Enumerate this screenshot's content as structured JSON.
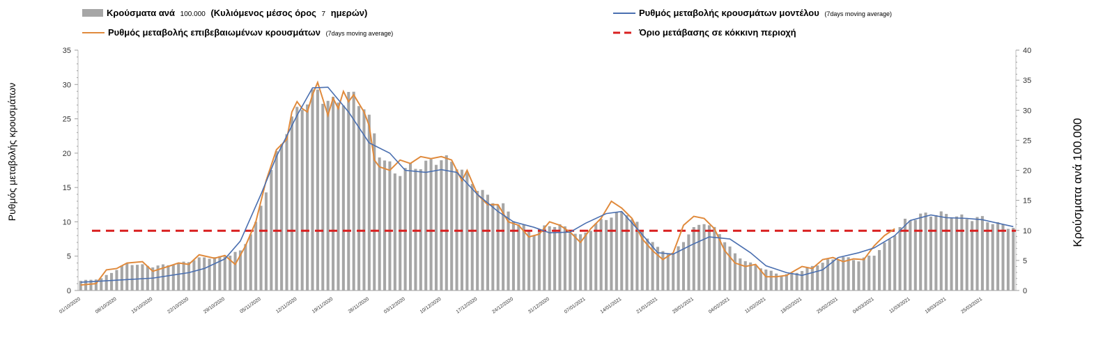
{
  "chart_data": {
    "type": "bar+line",
    "legend": {
      "bars": {
        "main": "Κρούσματα ανά",
        "num": "100.000",
        "paren": "(Κυλιόμενος μέσος όρος",
        "small": "7",
        "end": "ημερών)"
      },
      "model": {
        "main": "Ρυθμός μεταβολής κρουσμάτων μοντέλου",
        "small": "(7days moving average)"
      },
      "confirmed": {
        "main": "Ρυθμός μεταβολής επιβεβαιωμένων κρουσμάτων",
        "small": "(7days moving average)"
      },
      "threshold": {
        "main": "Όριο μετάβασης σε κόκκινη περιοχή"
      }
    },
    "ylabel_left": "Ρυθμός μεταβολής κρουσμάτων",
    "ylabel_right": "Κρούσματα ανά 100.000",
    "ylim_left": [
      0,
      35
    ],
    "yticks_left": [
      "0",
      "5",
      "10",
      "15",
      "20",
      "25",
      "30",
      "35"
    ],
    "ylim_right": [
      0,
      40
    ],
    "yticks_right": [
      "0",
      "5",
      "10",
      "15",
      "20",
      "25",
      "30",
      "35",
      "40"
    ],
    "x_start": "2020-10-01",
    "x_end": "2021-03-31",
    "x_tick_labels": [
      "01/10/2020",
      "08/10/2020",
      "15/10/2020",
      "22/10/2020",
      "29/10/2020",
      "05/11/2020",
      "12/11/2020",
      "19/11/2020",
      "26/11/2020",
      "03/12/2020",
      "10/12/2020",
      "17/12/2020",
      "24/12/2020",
      "31/12/2020",
      "07/01/2021",
      "14/01/2021",
      "21/01/2021",
      "28/01/2021",
      "04/02/2021",
      "11/02/2021",
      "18/02/2021",
      "25/02/2021",
      "04/03/2021",
      "11/03/2021",
      "18/03/2021",
      "25/03/2021"
    ],
    "threshold_value": 8.7,
    "colors": {
      "bars": "#a6a6a6",
      "model": "#4a6fb0",
      "confirmed": "#e08a3c",
      "threshold": "#d92020"
    },
    "model_series": [
      [
        "2020-10-01",
        1.2
      ],
      [
        "2020-10-08",
        1.5
      ],
      [
        "2020-10-15",
        1.8
      ],
      [
        "2020-10-22",
        2.6
      ],
      [
        "2020-10-25",
        3.2
      ],
      [
        "2020-10-29",
        4.6
      ],
      [
        "2020-11-01",
        7.2
      ],
      [
        "2020-11-05",
        14.0
      ],
      [
        "2020-11-08",
        19.5
      ],
      [
        "2020-11-12",
        25.5
      ],
      [
        "2020-11-15",
        29.5
      ],
      [
        "2020-11-18",
        29.6
      ],
      [
        "2020-11-22",
        26.0
      ],
      [
        "2020-11-26",
        21.5
      ],
      [
        "2020-11-30",
        20.0
      ],
      [
        "2020-12-03",
        17.5
      ],
      [
        "2020-12-07",
        17.2
      ],
      [
        "2020-12-10",
        17.6
      ],
      [
        "2020-12-13",
        17.2
      ],
      [
        "2020-12-17",
        14.0
      ],
      [
        "2020-12-21",
        11.5
      ],
      [
        "2020-12-24",
        10.0
      ],
      [
        "2020-12-28",
        9.2
      ],
      [
        "2020-12-31",
        8.4
      ],
      [
        "2021-01-04",
        8.5
      ],
      [
        "2021-01-07",
        9.8
      ],
      [
        "2021-01-11",
        11.2
      ],
      [
        "2021-01-14",
        11.5
      ],
      [
        "2021-01-17",
        9.0
      ],
      [
        "2021-01-21",
        5.5
      ],
      [
        "2021-01-24",
        5.3
      ],
      [
        "2021-01-28",
        6.8
      ],
      [
        "2021-01-31",
        7.8
      ],
      [
        "2021-02-04",
        7.5
      ],
      [
        "2021-02-08",
        5.5
      ],
      [
        "2021-02-11",
        3.6
      ],
      [
        "2021-02-15",
        2.6
      ],
      [
        "2021-02-18",
        2.2
      ],
      [
        "2021-02-22",
        3.0
      ],
      [
        "2021-02-25",
        4.8
      ],
      [
        "2021-03-01",
        5.5
      ],
      [
        "2021-03-04",
        6.2
      ],
      [
        "2021-03-08",
        8.0
      ],
      [
        "2021-03-11",
        10.2
      ],
      [
        "2021-03-15",
        11.0
      ],
      [
        "2021-03-18",
        10.6
      ],
      [
        "2021-03-22",
        10.5
      ],
      [
        "2021-03-25",
        10.3
      ],
      [
        "2021-03-31",
        9.3
      ]
    ],
    "confirmed_series": [
      [
        "2020-10-01",
        0.8
      ],
      [
        "2020-10-04",
        1.0
      ],
      [
        "2020-10-06",
        3.0
      ],
      [
        "2020-10-08",
        3.2
      ],
      [
        "2020-10-10",
        4.0
      ],
      [
        "2020-10-13",
        4.2
      ],
      [
        "2020-10-15",
        2.8
      ],
      [
        "2020-10-18",
        3.5
      ],
      [
        "2020-10-20",
        4.0
      ],
      [
        "2020-10-22",
        3.8
      ],
      [
        "2020-10-24",
        5.2
      ],
      [
        "2020-10-27",
        4.7
      ],
      [
        "2020-10-29",
        5.1
      ],
      [
        "2020-10-31",
        3.8
      ],
      [
        "2020-11-02",
        6.5
      ],
      [
        "2020-11-04",
        10.0
      ],
      [
        "2020-11-06",
        16.0
      ],
      [
        "2020-11-08",
        20.5
      ],
      [
        "2020-11-10",
        22.0
      ],
      [
        "2020-11-11",
        26.0
      ],
      [
        "2020-11-12",
        27.5
      ],
      [
        "2020-11-13",
        26.5
      ],
      [
        "2020-11-14",
        26.0
      ],
      [
        "2020-11-15",
        28.5
      ],
      [
        "2020-11-16",
        30.3
      ],
      [
        "2020-11-18",
        25.5
      ],
      [
        "2020-11-19",
        28.0
      ],
      [
        "2020-11-20",
        26.5
      ],
      [
        "2020-11-21",
        29.0
      ],
      [
        "2020-11-22",
        27.5
      ],
      [
        "2020-11-23",
        28.5
      ],
      [
        "2020-11-25",
        26.0
      ],
      [
        "2020-11-26",
        24.0
      ],
      [
        "2020-11-27",
        19.0
      ],
      [
        "2020-11-28",
        18.0
      ],
      [
        "2020-11-30",
        17.5
      ],
      [
        "2020-12-02",
        19.0
      ],
      [
        "2020-12-04",
        18.5
      ],
      [
        "2020-12-06",
        19.5
      ],
      [
        "2020-12-08",
        19.2
      ],
      [
        "2020-12-10",
        19.5
      ],
      [
        "2020-12-12",
        19.0
      ],
      [
        "2020-12-14",
        16.0
      ],
      [
        "2020-12-15",
        17.5
      ],
      [
        "2020-12-17",
        14.0
      ],
      [
        "2020-12-19",
        12.5
      ],
      [
        "2020-12-21",
        12.5
      ],
      [
        "2020-12-23",
        10.0
      ],
      [
        "2020-12-25",
        9.5
      ],
      [
        "2020-12-27",
        7.8
      ],
      [
        "2020-12-29",
        8.2
      ],
      [
        "2020-12-31",
        10.0
      ],
      [
        "2021-01-02",
        9.5
      ],
      [
        "2021-01-04",
        8.5
      ],
      [
        "2021-01-06",
        7.0
      ],
      [
        "2021-01-08",
        9.0
      ],
      [
        "2021-01-10",
        10.5
      ],
      [
        "2021-01-12",
        13.0
      ],
      [
        "2021-01-14",
        12.0
      ],
      [
        "2021-01-16",
        10.5
      ],
      [
        "2021-01-18",
        7.5
      ],
      [
        "2021-01-20",
        5.8
      ],
      [
        "2021-01-22",
        4.5
      ],
      [
        "2021-01-24",
        5.5
      ],
      [
        "2021-01-26",
        9.5
      ],
      [
        "2021-01-28",
        10.8
      ],
      [
        "2021-01-30",
        10.5
      ],
      [
        "2021-02-01",
        9.0
      ],
      [
        "2021-02-03",
        5.8
      ],
      [
        "2021-02-05",
        4.0
      ],
      [
        "2021-02-07",
        3.5
      ],
      [
        "2021-02-09",
        3.8
      ],
      [
        "2021-02-11",
        2.0
      ],
      [
        "2021-02-13",
        2.0
      ],
      [
        "2021-02-15",
        2.2
      ],
      [
        "2021-02-18",
        3.5
      ],
      [
        "2021-02-20",
        3.2
      ],
      [
        "2021-02-22",
        4.5
      ],
      [
        "2021-02-24",
        4.8
      ],
      [
        "2021-02-26",
        4.2
      ],
      [
        "2021-02-28",
        4.6
      ],
      [
        "2021-03-02",
        4.5
      ],
      [
        "2021-03-04",
        6.5
      ],
      [
        "2021-03-06",
        8.0
      ],
      [
        "2021-03-08",
        9.0
      ]
    ],
    "bars_series": [
      [
        "2020-10-01",
        1.6
      ],
      [
        "2020-10-05",
        2.0
      ],
      [
        "2020-10-10",
        4.5
      ],
      [
        "2020-10-15",
        4.0
      ],
      [
        "2020-10-20",
        4.5
      ],
      [
        "2020-10-25",
        5.5
      ],
      [
        "2020-10-28",
        5.5
      ],
      [
        "2020-11-01",
        6.5
      ],
      [
        "2020-11-04",
        11.0
      ],
      [
        "2020-11-07",
        20.0
      ],
      [
        "2020-11-10",
        27.0
      ],
      [
        "2020-11-13",
        31.0
      ],
      [
        "2020-11-16",
        33.0
      ],
      [
        "2020-11-19",
        31.0
      ],
      [
        "2020-11-22",
        32.5
      ],
      [
        "2020-11-25",
        31.0
      ],
      [
        "2020-11-28",
        23.0
      ],
      [
        "2020-12-01",
        19.5
      ],
      [
        "2020-12-04",
        20.5
      ],
      [
        "2020-12-07",
        21.0
      ],
      [
        "2020-12-10",
        22.0
      ],
      [
        "2020-12-13",
        21.0
      ],
      [
        "2020-12-16",
        18.0
      ],
      [
        "2020-12-19",
        15.5
      ],
      [
        "2020-12-22",
        14.0
      ],
      [
        "2020-12-25",
        11.0
      ],
      [
        "2020-12-28",
        9.5
      ],
      [
        "2020-12-31",
        11.0
      ],
      [
        "2021-01-03",
        10.5
      ],
      [
        "2021-01-06",
        9.0
      ],
      [
        "2021-01-09",
        11.0
      ],
      [
        "2021-01-12",
        12.5
      ],
      [
        "2021-01-15",
        13.0
      ],
      [
        "2021-01-18",
        10.0
      ],
      [
        "2021-01-21",
        7.0
      ],
      [
        "2021-01-24",
        6.0
      ],
      [
        "2021-01-27",
        9.5
      ],
      [
        "2021-01-30",
        11.5
      ],
      [
        "2021-02-02",
        9.5
      ],
      [
        "2021-02-05",
        6.0
      ],
      [
        "2021-02-08",
        4.5
      ],
      [
        "2021-02-11",
        3.5
      ],
      [
        "2021-02-14",
        2.5
      ],
      [
        "2021-02-17",
        3.0
      ],
      [
        "2021-02-20",
        4.0
      ],
      [
        "2021-02-23",
        5.0
      ],
      [
        "2021-02-26",
        5.5
      ],
      [
        "2021-03-01",
        5.0
      ],
      [
        "2021-03-04",
        6.0
      ],
      [
        "2021-03-07",
        8.5
      ],
      [
        "2021-03-10",
        11.5
      ],
      [
        "2021-03-13",
        12.5
      ],
      [
        "2021-03-16",
        12.8
      ],
      [
        "2021-03-19",
        12.5
      ],
      [
        "2021-03-22",
        12.0
      ],
      [
        "2021-03-25",
        12.0
      ],
      [
        "2021-03-28",
        11.0
      ],
      [
        "2021-03-31",
        10.5
      ]
    ]
  }
}
